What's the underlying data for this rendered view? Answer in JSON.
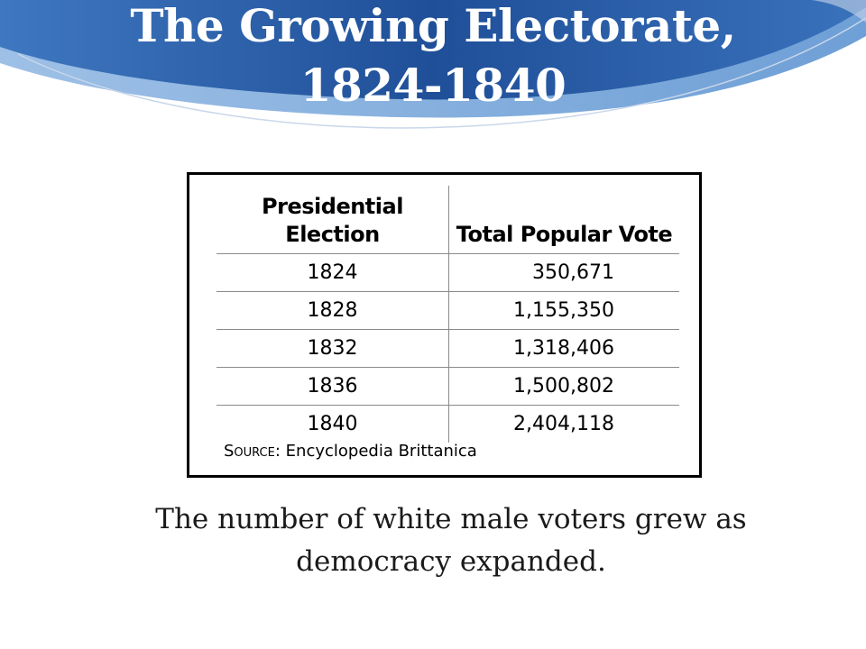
{
  "slide": {
    "title": "The Growing Electorate, 1824-1840",
    "caption": "The number of white male voters grew as democracy expanded."
  },
  "table": {
    "headers": [
      "Presidential Election",
      "Total Popular Vote"
    ],
    "rows": [
      {
        "year": "1824",
        "vote": "350,671"
      },
      {
        "year": "1828",
        "vote": "1,155,350"
      },
      {
        "year": "1832",
        "vote": "1,318,406"
      },
      {
        "year": "1836",
        "vote": "1,500,802"
      },
      {
        "year": "1840",
        "vote": "2,404,118"
      }
    ],
    "source_label": "Source:",
    "source_text": "Encyclopedia Brittanica"
  },
  "theme": {
    "header_dark": "#1a4a8f",
    "header_light": "#5b8fd0",
    "title_color": "#ffffff"
  }
}
